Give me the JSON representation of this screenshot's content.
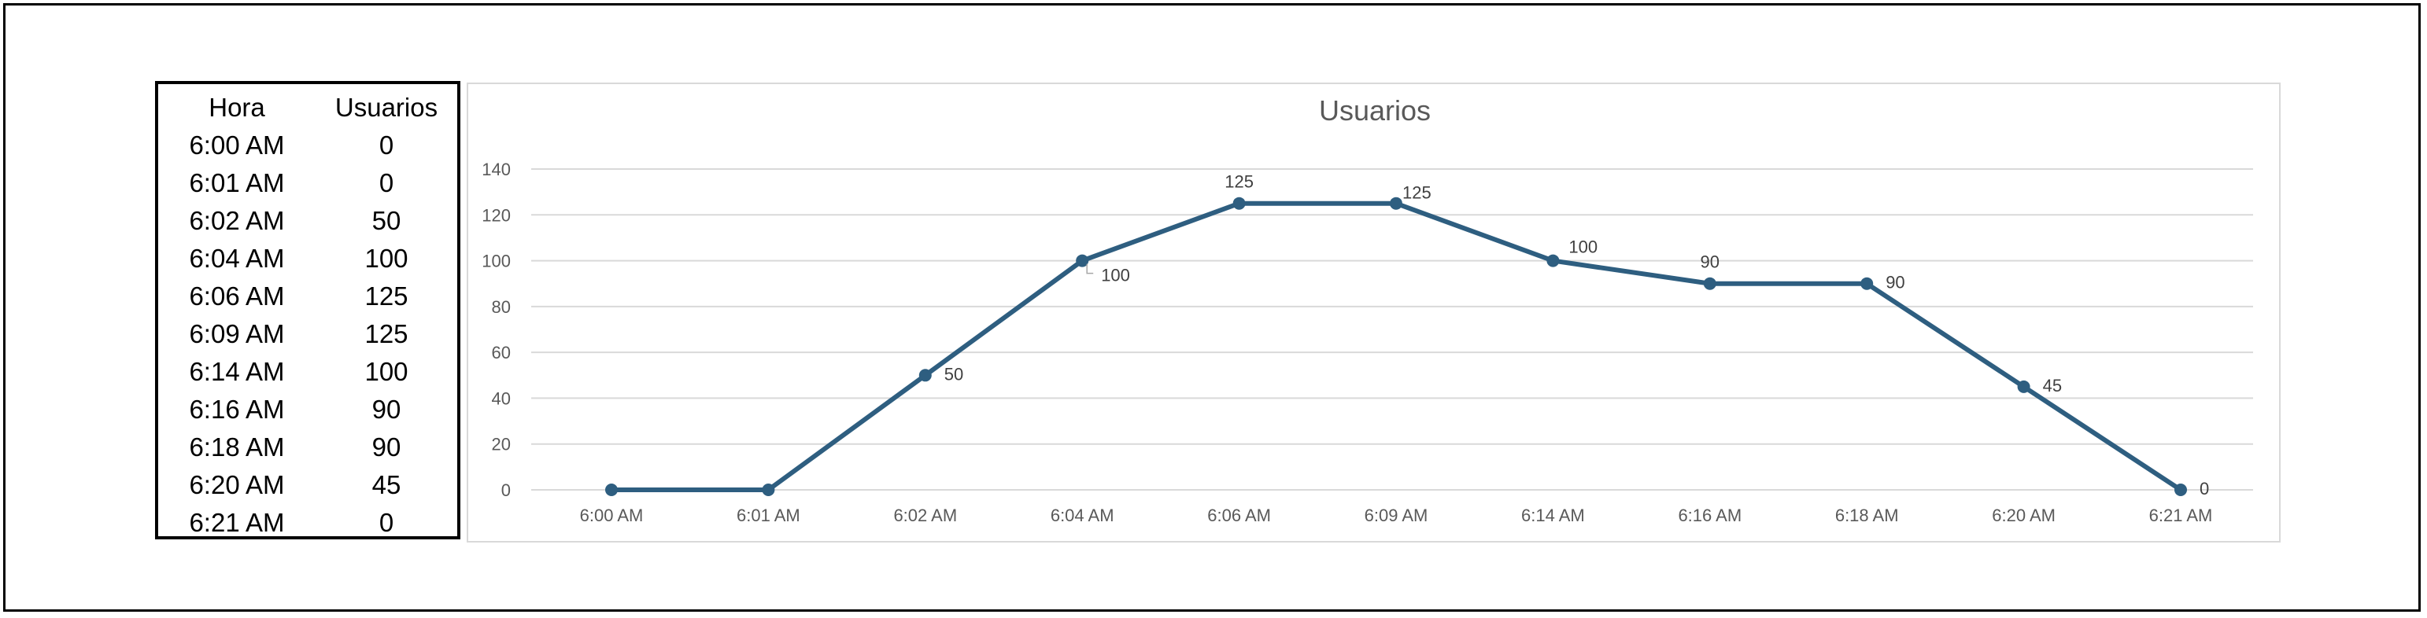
{
  "table": {
    "headers": [
      "Hora",
      "Usuarios"
    ],
    "rows": [
      [
        "6:00 AM",
        "0"
      ],
      [
        "6:01 AM",
        "0"
      ],
      [
        "6:02 AM",
        "50"
      ],
      [
        "6:04 AM",
        "100"
      ],
      [
        "6:06 AM",
        "125"
      ],
      [
        "6:09 AM",
        "125"
      ],
      [
        "6:14 AM",
        "100"
      ],
      [
        "6:16 AM",
        "90"
      ],
      [
        "6:18 AM",
        "90"
      ],
      [
        "6:20 AM",
        "45"
      ],
      [
        "6:21 AM",
        "0"
      ]
    ]
  },
  "chart_data": {
    "type": "line",
    "title": "Usuarios",
    "categories": [
      "6:00 AM",
      "6:01 AM",
      "6:02 AM",
      "6:04 AM",
      "6:06 AM",
      "6:09 AM",
      "6:14 AM",
      "6:16 AM",
      "6:18 AM",
      "6:20 AM",
      "6:21 AM"
    ],
    "series": [
      {
        "values": [
          0,
          0,
          50,
          100,
          125,
          125,
          100,
          90,
          90,
          45,
          0
        ],
        "color": "#2e5e80"
      }
    ],
    "ylim": [
      0,
      140
    ],
    "yticks": [
      0,
      20,
      40,
      60,
      80,
      100,
      120,
      140
    ],
    "data_labels": [
      "",
      "",
      "50",
      "100",
      "125",
      "125",
      "100",
      "90",
      "90",
      "45",
      "0"
    ],
    "grid": true,
    "legend": "none",
    "gridline_color": "#d9d9d9"
  }
}
